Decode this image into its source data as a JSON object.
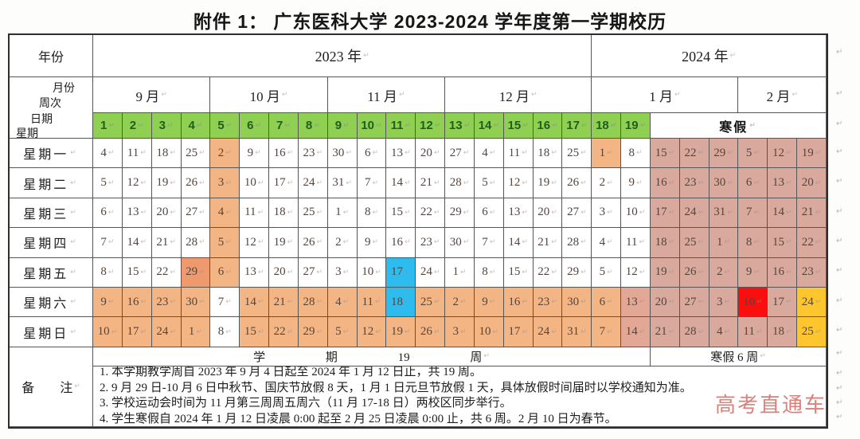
{
  "title": "附件 1：  广东医科大学 2023-2024 学年度第一学期校历",
  "watermark": "高考直通车",
  "colors": {
    "green": "#8fd052",
    "orange": "#f4b585",
    "orange_dark": "#ee9a6e",
    "blue": "#2ebcee",
    "pink": "#d9a99e",
    "pink_weekend": "#e3a795",
    "red": "#fb0e0e",
    "yellow": "#fec62e",
    "white": "#ffffff"
  },
  "header": {
    "year_label": "年份",
    "years": [
      {
        "label": "2023 年",
        "span": 17
      },
      {
        "label": "2024 年",
        "span": 8
      }
    ],
    "corner": [
      "月份",
      "周次",
      "日期",
      "星期"
    ],
    "months": [
      {
        "label": "9 月",
        "span": 4
      },
      {
        "label": "10 月",
        "span": 4
      },
      {
        "label": "11 月",
        "span": 4
      },
      {
        "label": "12 月",
        "span": 5
      },
      {
        "label": "1 月",
        "span": 5
      },
      {
        "label": "2 月",
        "span": 3
      }
    ],
    "weeks": [
      "1",
      "2",
      "3",
      "4",
      "5",
      "6",
      "7",
      "8",
      "9",
      "10",
      "11",
      "12",
      "13",
      "14",
      "15",
      "16",
      "17",
      "18",
      "19"
    ],
    "vacation_label": "寒假",
    "vacation_span": 6
  },
  "rows": [
    {
      "label": "星期一",
      "values": [
        "4",
        "11",
        "18",
        "25",
        "2",
        "9",
        "16",
        "23",
        "30",
        "6",
        "13",
        "20",
        "27",
        "4",
        "11",
        "18",
        "25",
        "1",
        "8",
        "15",
        "22",
        "29",
        "5",
        "12",
        "19"
      ],
      "colors": [
        "w",
        "w",
        "w",
        "w",
        "o",
        "w",
        "w",
        "w",
        "w",
        "w",
        "w",
        "w",
        "w",
        "w",
        "w",
        "w",
        "w",
        "o",
        "w",
        "p",
        "p",
        "p",
        "p",
        "p",
        "p"
      ]
    },
    {
      "label": "星期二",
      "values": [
        "5",
        "12",
        "19",
        "26",
        "3",
        "10",
        "17",
        "24",
        "31",
        "7",
        "14",
        "21",
        "28",
        "5",
        "12",
        "19",
        "26",
        "2",
        "9",
        "16",
        "23",
        "30",
        "6",
        "13",
        "20"
      ],
      "colors": [
        "w",
        "w",
        "w",
        "w",
        "o",
        "w",
        "w",
        "w",
        "w",
        "w",
        "w",
        "w",
        "w",
        "w",
        "w",
        "w",
        "w",
        "w",
        "w",
        "p",
        "p",
        "p",
        "p",
        "p",
        "p"
      ]
    },
    {
      "label": "星期三",
      "values": [
        "6",
        "13",
        "20",
        "27",
        "4",
        "11",
        "18",
        "25",
        "1",
        "8",
        "15",
        "22",
        "29",
        "6",
        "13",
        "20",
        "27",
        "3",
        "10",
        "17",
        "24",
        "31",
        "7",
        "14",
        "21"
      ],
      "colors": [
        "w",
        "w",
        "w",
        "w",
        "o",
        "w",
        "w",
        "w",
        "w",
        "w",
        "w",
        "w",
        "w",
        "w",
        "w",
        "w",
        "w",
        "w",
        "w",
        "p",
        "p",
        "p",
        "p",
        "p",
        "p"
      ]
    },
    {
      "label": "星期四",
      "values": [
        "7",
        "14",
        "21",
        "28",
        "5",
        "12",
        "19",
        "26",
        "2",
        "9",
        "16",
        "23",
        "30",
        "7",
        "14",
        "21",
        "28",
        "4",
        "11",
        "18",
        "25",
        "1",
        "8",
        "15",
        "22"
      ],
      "colors": [
        "w",
        "w",
        "w",
        "w",
        "o",
        "w",
        "w",
        "w",
        "w",
        "w",
        "w",
        "w",
        "w",
        "w",
        "w",
        "w",
        "w",
        "w",
        "w",
        "p",
        "p",
        "p",
        "p",
        "p",
        "p"
      ]
    },
    {
      "label": "星期五",
      "values": [
        "8",
        "15",
        "22",
        "29",
        "6",
        "13",
        "20",
        "27",
        "3",
        "10",
        "17",
        "24",
        "1",
        "8",
        "15",
        "22",
        "29",
        "5",
        "12",
        "19",
        "26",
        "2",
        "9",
        "16",
        "23"
      ],
      "colors": [
        "w",
        "w",
        "w",
        "d",
        "o",
        "w",
        "w",
        "w",
        "w",
        "w",
        "b",
        "w",
        "w",
        "w",
        "w",
        "w",
        "w",
        "w",
        "w",
        "p",
        "p",
        "p",
        "p",
        "p",
        "p"
      ]
    },
    {
      "label": "星期六",
      "values": [
        "9",
        "16",
        "23",
        "30",
        "7",
        "14",
        "21",
        "28",
        "4",
        "11",
        "18",
        "25",
        "2",
        "9",
        "16",
        "23",
        "30",
        "6",
        "13",
        "20",
        "27",
        "3",
        "10",
        "17",
        "24"
      ],
      "colors": [
        "o",
        "o",
        "o",
        "o",
        "w",
        "o",
        "o",
        "o",
        "o",
        "o",
        "b",
        "o",
        "o",
        "o",
        "o",
        "o",
        "o",
        "o",
        "t",
        "p",
        "p",
        "p",
        "r",
        "p",
        "y"
      ]
    },
    {
      "label": "星期日",
      "values": [
        "10",
        "17",
        "24",
        "1",
        "8",
        "15",
        "22",
        "29",
        "5",
        "12",
        "19",
        "26",
        "3",
        "10",
        "17",
        "24",
        "31",
        "7",
        "14",
        "21",
        "28",
        "4",
        "11",
        "18",
        "25"
      ],
      "colors": [
        "o",
        "o",
        "o",
        "o",
        "w",
        "o",
        "o",
        "o",
        "o",
        "o",
        "o",
        "o",
        "o",
        "o",
        "o",
        "o",
        "o",
        "o",
        "t",
        "p",
        "p",
        "p",
        "p",
        "p",
        "y"
      ]
    }
  ],
  "summary": {
    "semester": "学 期 19 周",
    "vacation": "寒假 6 周"
  },
  "notes_label": "备 注",
  "notes": [
    "1. 本学期教学周自 2023 年 9 月 4 日起至 2024 年 1 月 12 日止，共 19 周。",
    "2. 9 月 29 日-10 月 6 日中秋节、国庆节放假 8 天，1 月 1 日元旦节放假 1 天，具体放假时间届时以学校通知为准。",
    "3. 学校运动会时间为 11 月第三周周五周六（11 月 17-18 日）两校区同步举行。",
    "4. 学生寒假自 2024 年 1 月 12 日凌晨 0:00 起至 2 月 25 日凌晨 0:00 止，共 6 周。2 月 10 日为春节。"
  ]
}
